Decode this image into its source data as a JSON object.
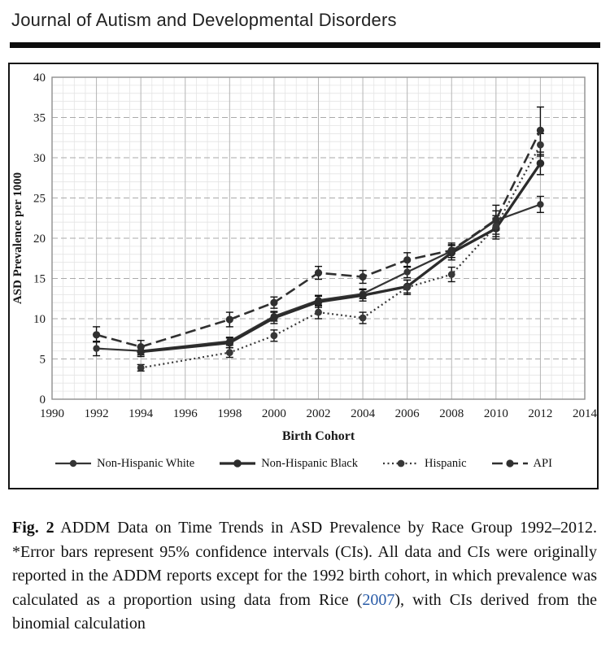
{
  "page": {
    "journal_title": "Journal of Autism and Developmental Disorders"
  },
  "chart_data": {
    "type": "line",
    "title": "",
    "xlabel": "Birth Cohort",
    "ylabel": "ASD Prevalence per 1000",
    "xlim": [
      1990,
      2014
    ],
    "ylim": [
      0,
      40
    ],
    "x_ticks": [
      1990,
      1992,
      1994,
      1996,
      1998,
      2000,
      2002,
      2004,
      2006,
      2008,
      2010,
      2012,
      2014
    ],
    "y_ticks": [
      0,
      5,
      10,
      15,
      20,
      25,
      30,
      35,
      40
    ],
    "grid": "major and minor graph-paper grid",
    "legend_position": "bottom",
    "error_bars": "95% confidence intervals",
    "x": [
      1992,
      1994,
      1998,
      2000,
      2002,
      2004,
      2006,
      2008,
      2010,
      2012
    ],
    "series": [
      {
        "name": "Non-Hispanic White",
        "line_style": "solid",
        "line_width": 2.2,
        "marker_radius": 4.2,
        "color": "#353535",
        "values": [
          6.3,
          6.0,
          7.2,
          10.3,
          12.3,
          13.1,
          15.8,
          18.4,
          22.2,
          24.2
        ],
        "ci_low": [
          5.4,
          5.5,
          6.7,
          9.7,
          11.7,
          12.5,
          15.1,
          17.6,
          21.0,
          23.2
        ],
        "ci_high": [
          7.2,
          6.5,
          7.7,
          10.9,
          12.9,
          13.7,
          16.5,
          19.2,
          23.4,
          25.2
        ]
      },
      {
        "name": "Non-Hispanic Black",
        "line_style": "solid",
        "line_width": 3.3,
        "marker_radius": 4.8,
        "color": "#2b2b2b",
        "values": [
          null,
          5.9,
          7.0,
          10.1,
          12.1,
          12.9,
          14.0,
          18.2,
          21.2,
          29.3
        ],
        "ci_low": [
          null,
          5.3,
          6.4,
          9.4,
          11.4,
          12.2,
          13.2,
          17.3,
          19.9,
          27.9
        ],
        "ci_high": [
          null,
          6.5,
          7.6,
          10.8,
          12.8,
          13.6,
          14.8,
          19.1,
          22.5,
          30.7
        ]
      },
      {
        "name": "Hispanic",
        "line_style": "dotted",
        "line_width": 2.2,
        "marker_radius": 4.4,
        "color": "#383838",
        "values": [
          null,
          3.9,
          5.8,
          7.9,
          10.8,
          10.1,
          13.9,
          15.5,
          21.5,
          31.6
        ],
        "ci_low": [
          null,
          3.5,
          5.2,
          7.2,
          10.0,
          9.4,
          13.0,
          14.6,
          20.2,
          30.2
        ],
        "ci_high": [
          null,
          4.3,
          6.4,
          8.6,
          11.6,
          10.8,
          14.8,
          16.4,
          22.8,
          33.0
        ]
      },
      {
        "name": "API",
        "line_style": "dashed",
        "line_width": 2.6,
        "marker_radius": 4.6,
        "color": "#303030",
        "values": [
          8.0,
          6.5,
          9.9,
          12.0,
          15.7,
          15.2,
          17.3,
          18.5,
          22.3,
          33.4
        ],
        "ci_low": [
          7.1,
          5.8,
          9.0,
          11.3,
          14.9,
          14.4,
          16.4,
          17.6,
          20.5,
          30.4
        ],
        "ci_high": [
          9.0,
          7.3,
          10.8,
          12.7,
          16.5,
          16.0,
          18.2,
          19.4,
          24.1,
          36.3
        ]
      }
    ]
  },
  "caption": {
    "fig_label": "Fig. 2",
    "text_before_link": " ADDM Data on Time Trends in ASD Prevalence by Race Group 1992–2012. *Error bars represent 95% confidence intervals (CIs). All data and CIs were originally reported in the ADDM reports except for the 1992 birth cohort, in which prevalence was calculated as a proportion using data from Rice (",
    "link_text": "2007",
    "text_after_link": "), with CIs derived from the binomial calculation",
    "link_color": "#2a5ca8"
  }
}
